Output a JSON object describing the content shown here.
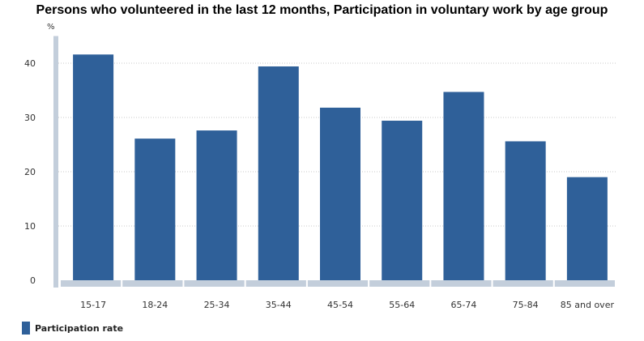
{
  "chart_data": {
    "type": "bar",
    "title": "Persons who volunteered in the last 12 months, Participation in voluntary work by age group",
    "ylabel": "%",
    "ylim": [
      0,
      45
    ],
    "yticks": [
      0,
      10,
      20,
      30,
      40
    ],
    "grid": true,
    "categories": [
      "15-17",
      "18-24",
      "25-34",
      "35-44",
      "45-54",
      "55-64",
      "65-74",
      "75-84",
      "85 and over"
    ],
    "series": [
      {
        "name": "Participation rate",
        "values": [
          41.6,
          26.1,
          27.6,
          39.4,
          31.8,
          29.4,
          34.7,
          25.6,
          19.0
        ]
      }
    ],
    "legend": "bottom-left"
  },
  "colors": {
    "bar": "#2f6099",
    "axis": "#c3cedb",
    "grid": "#c8c8c8"
  }
}
